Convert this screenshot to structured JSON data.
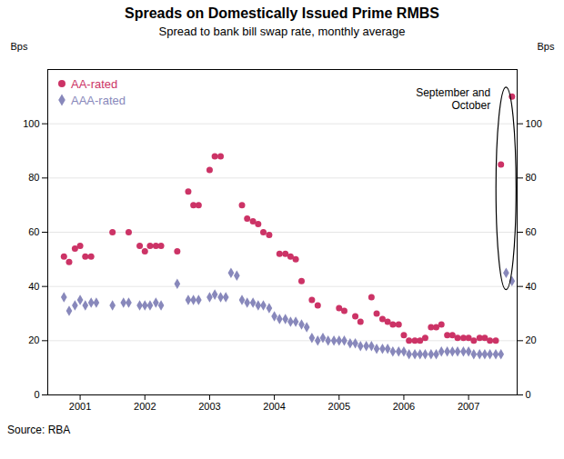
{
  "chart_data": {
    "type": "scatter",
    "title": "Spreads on Domestically Issued Prime RMBS",
    "subtitle": "Spread to bank bill swap rate, monthly average",
    "source": "Source: RBA",
    "ylabel": "Bps",
    "y2label": "Bps",
    "xlim": [
      2000.5,
      2007.75
    ],
    "xticks": [
      2001,
      2002,
      2003,
      2004,
      2005,
      2006,
      2007
    ],
    "ylim": [
      0,
      120
    ],
    "yticks": [
      0,
      20,
      40,
      60,
      80,
      100
    ],
    "y2lim": [
      0,
      120
    ],
    "y2ticks": [
      0,
      20,
      40,
      60,
      80,
      100
    ],
    "grid": true,
    "legend": "top-left",
    "annotations": [
      "September and\nOctober"
    ],
    "series": [
      {
        "name": "AA-rated",
        "color": "#cc3366",
        "marker": "circle",
        "x": [
          2000.75,
          2000.83,
          2000.92,
          2001.0,
          2001.08,
          2001.17,
          2001.5,
          2001.75,
          2001.92,
          2002.0,
          2002.08,
          2002.17,
          2002.25,
          2002.5,
          2002.67,
          2002.75,
          2002.83,
          2003.0,
          2003.08,
          2003.17,
          2003.5,
          2003.58,
          2003.67,
          2003.75,
          2003.83,
          2003.92,
          2004.08,
          2004.17,
          2004.25,
          2004.33,
          2004.42,
          2004.58,
          2004.67,
          2005.0,
          2005.08,
          2005.25,
          2005.33,
          2005.5,
          2005.58,
          2005.67,
          2005.75,
          2005.83,
          2005.92,
          2006.0,
          2006.08,
          2006.17,
          2006.25,
          2006.33,
          2006.42,
          2006.5,
          2006.58,
          2006.67,
          2006.75,
          2006.83,
          2006.92,
          2007.0,
          2007.08,
          2007.17,
          2007.25,
          2007.33,
          2007.42,
          2007.5,
          2007.67
        ],
        "values": [
          51,
          49,
          54,
          55,
          51,
          51,
          60,
          60,
          55,
          53,
          55,
          55,
          55,
          53,
          75,
          70,
          70,
          83,
          88,
          88,
          70,
          65,
          64,
          63,
          60,
          59,
          52,
          52,
          51,
          50,
          42,
          35,
          33,
          32,
          31,
          29,
          27,
          36,
          30,
          28,
          27,
          26,
          26,
          22,
          20,
          20,
          20,
          21,
          25,
          25,
          26,
          22,
          22,
          21,
          21,
          21,
          20,
          21,
          21,
          20,
          20,
          85,
          110
        ]
      },
      {
        "name": "AAA-rated",
        "color": "#8888bb",
        "marker": "diamond",
        "x": [
          2000.75,
          2000.83,
          2000.92,
          2001.0,
          2001.08,
          2001.17,
          2001.25,
          2001.5,
          2001.67,
          2001.75,
          2001.92,
          2002.0,
          2002.08,
          2002.17,
          2002.25,
          2002.5,
          2002.67,
          2002.75,
          2002.83,
          2003.0,
          2003.08,
          2003.17,
          2003.25,
          2003.33,
          2003.42,
          2003.5,
          2003.58,
          2003.67,
          2003.75,
          2003.83,
          2003.92,
          2004.0,
          2004.08,
          2004.17,
          2004.25,
          2004.33,
          2004.42,
          2004.5,
          2004.58,
          2004.67,
          2004.75,
          2004.83,
          2004.92,
          2005.0,
          2005.08,
          2005.17,
          2005.25,
          2005.33,
          2005.42,
          2005.5,
          2005.58,
          2005.67,
          2005.75,
          2005.83,
          2005.92,
          2006.0,
          2006.08,
          2006.17,
          2006.25,
          2006.33,
          2006.42,
          2006.5,
          2006.58,
          2006.67,
          2006.75,
          2006.83,
          2006.92,
          2007.0,
          2007.08,
          2007.17,
          2007.25,
          2007.33,
          2007.42,
          2007.5,
          2007.58,
          2007.67
        ],
        "values": [
          36,
          31,
          33,
          35,
          33,
          34,
          34,
          33,
          34,
          34,
          33,
          33,
          33,
          34,
          33,
          41,
          35,
          35,
          35,
          36,
          37,
          36,
          36,
          45,
          44,
          35,
          34,
          34,
          33,
          33,
          32,
          29,
          28,
          28,
          27,
          27,
          26,
          25,
          21,
          20,
          21,
          20,
          20,
          20,
          20,
          19,
          19,
          18,
          18,
          18,
          17,
          17,
          17,
          16,
          16,
          16,
          15,
          15,
          15,
          15,
          15,
          15,
          16,
          16,
          16,
          16,
          16,
          16,
          15,
          15,
          15,
          15,
          15,
          15,
          45,
          42
        ]
      }
    ]
  }
}
